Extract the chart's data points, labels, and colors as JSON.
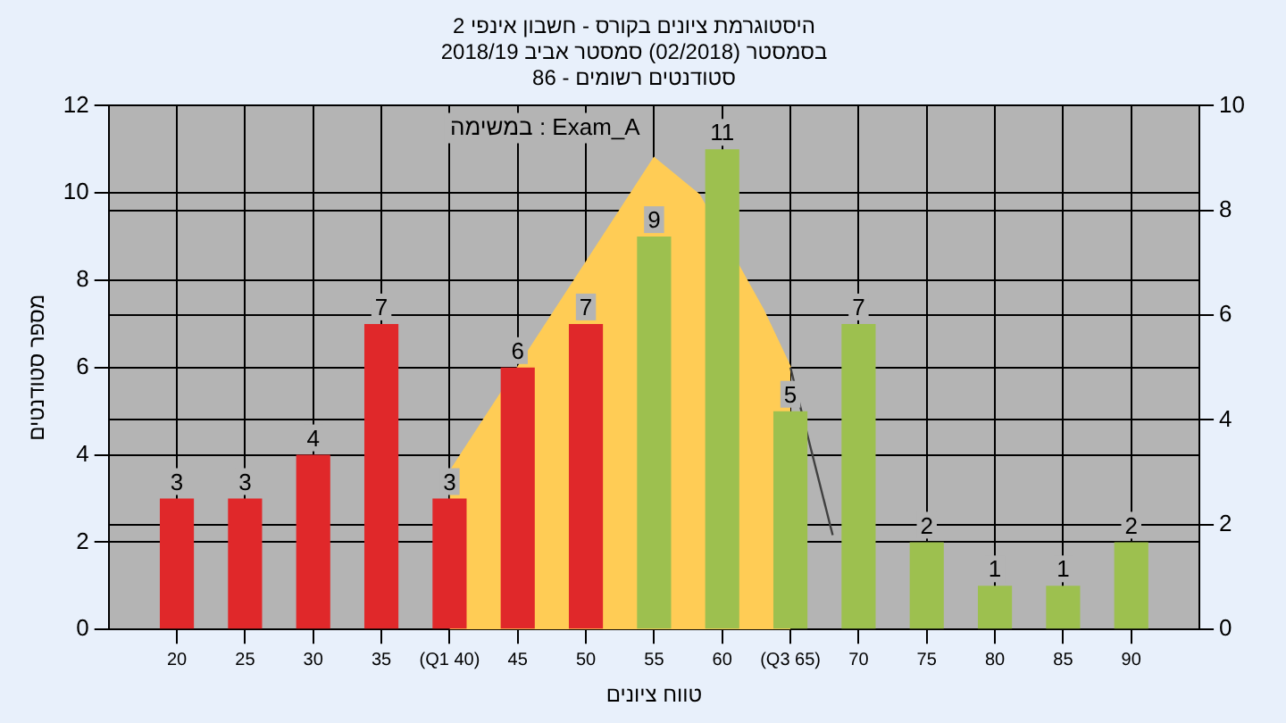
{
  "chart_data": {
    "type": "bar",
    "title": "היסטוגרמת ציונים בקורס - חשבון אינפי 2",
    "subtitle": "בסמסטר (02/2018) סמסטר אביב 2018/19\nסטודנטים רשומים - 86",
    "xlabel": "טווח ציונים",
    "ylabel": "מספר סטודנטים",
    "annotations": [
      "במשימה : Exam_A"
    ],
    "x": [
      20,
      25,
      30,
      35,
      40,
      45,
      50,
      55,
      60,
      65,
      70,
      75,
      80,
      85,
      90
    ],
    "series": [
      {
        "value_labels": [
          "3",
          "3",
          "4",
          "7",
          "3",
          "6",
          "7",
          "9",
          "11",
          "5",
          "7",
          "2",
          "1",
          "1",
          "2"
        ],
        "colors": [
          "#e0282a",
          "#e0282a",
          "#e0282a",
          "#e0282a",
          "#e0282a",
          "#e0282a",
          "#e0282a",
          "#9dc04f",
          "#9dc04f",
          "#9dc04f",
          "#9dc04f",
          "#9dc04f",
          "#9dc04f",
          "#9dc04f",
          "#9dc04f"
        ],
        "values": [
          3,
          3,
          4,
          7,
          3,
          6,
          7,
          9,
          11,
          5,
          7,
          2,
          1,
          1,
          2
        ]
      },
      {
        "type": "area",
        "axis": "y2",
        "color": "#ffcc55",
        "x": [
          40,
          55,
          58.3,
          63,
          65
        ],
        "values": [
          3,
          9,
          8.3,
          6.1,
          5
        ]
      },
      {
        "type": "line",
        "axis": "y2",
        "color": "#404040",
        "x": [
          65,
          68.1
        ],
        "values": [
          5,
          1.8
        ]
      }
    ],
    "xlim": [
      15,
      95
    ],
    "xticks": [
      20,
      25,
      30,
      35,
      {
        "value": 40,
        "label": "(Q1 40)"
      },
      45,
      50,
      55,
      60,
      {
        "value": 65,
        "label": "(Q3 65)"
      },
      70,
      75,
      80,
      85,
      90
    ],
    "ylim": [
      0,
      12
    ],
    "yticks": [
      0,
      2,
      4,
      6,
      8,
      10,
      12
    ],
    "y2lim": [
      0,
      10
    ],
    "y2ticks": [
      0,
      2,
      4,
      6,
      8,
      10
    ],
    "grid": true,
    "legend": false
  }
}
